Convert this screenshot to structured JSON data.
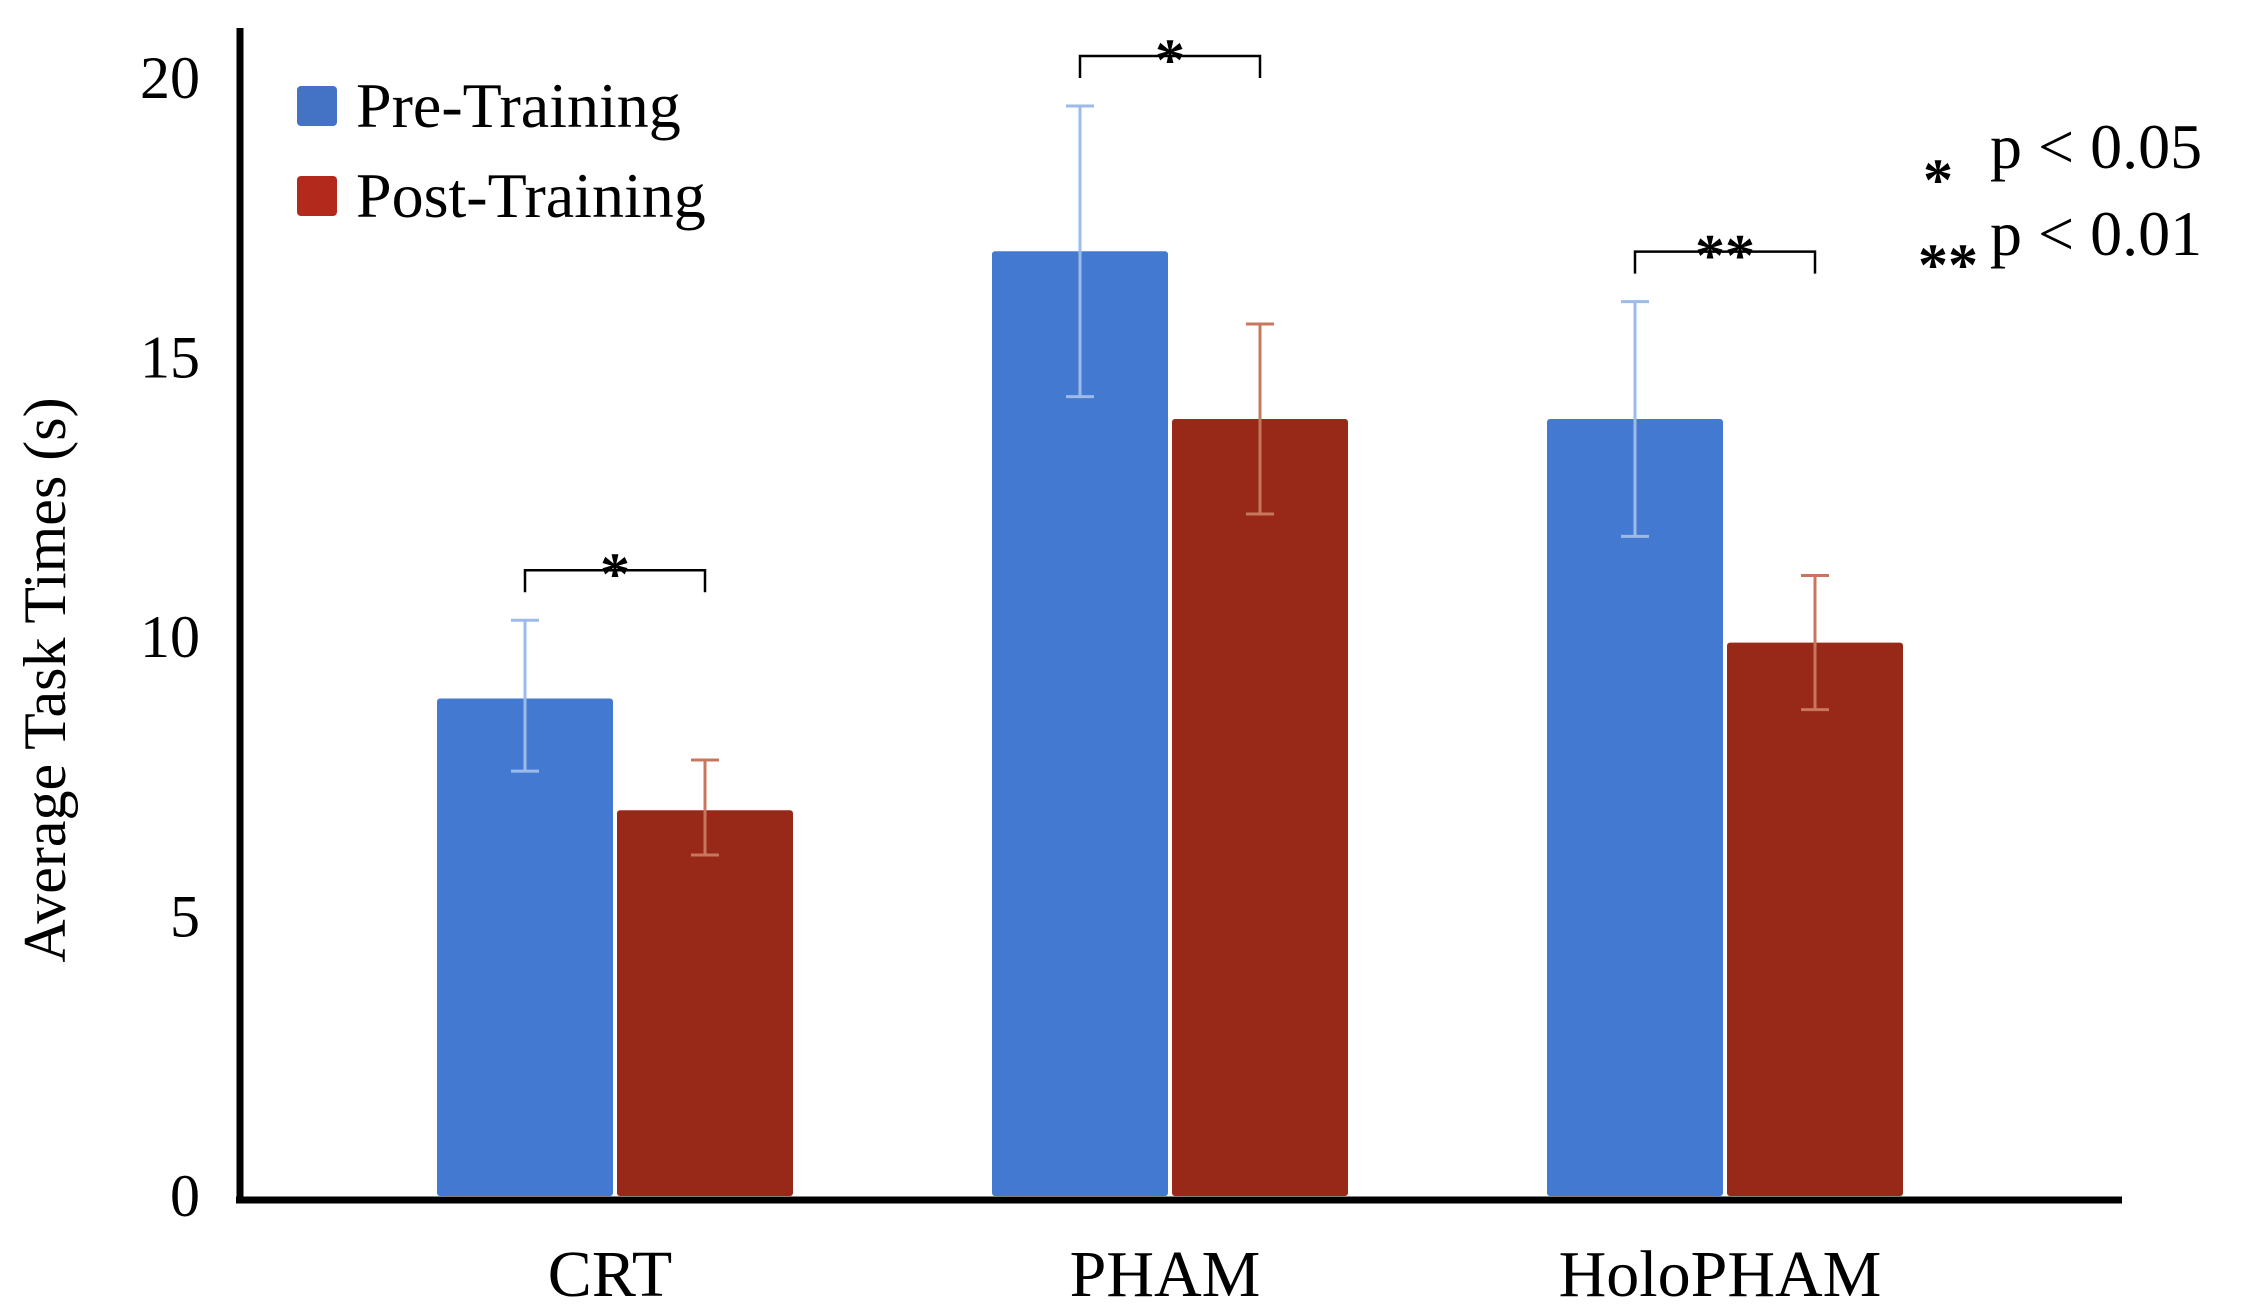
{
  "colors": {
    "pre_bar": "#4479d1",
    "pre_err": "#9dbbe8",
    "post_bar": "#982918",
    "post_err": "#c8775f",
    "axis": "#000000"
  },
  "chart_data": {
    "type": "bar",
    "categories": [
      "CRT",
      "PHAM",
      "HoloPHAM"
    ],
    "series": [
      {
        "name": "Pre-Training",
        "values": [
          8.9,
          16.9,
          13.9
        ],
        "error_low": [
          7.6,
          14.3,
          11.8
        ],
        "error_high": [
          10.3,
          19.5,
          16.0
        ],
        "legend_color": "#4472c4"
      },
      {
        "name": "Post-Training",
        "values": [
          6.9,
          13.9,
          9.9
        ],
        "error_low": [
          6.1,
          12.2,
          8.7
        ],
        "error_high": [
          7.8,
          15.6,
          11.1
        ],
        "legend_color": "#b32a1c"
      }
    ],
    "ylabel": "Average Task Times (s)",
    "xlabel": "",
    "ylim": [
      0,
      20
    ],
    "yticks": [
      "0",
      "5",
      "10",
      "15",
      "20"
    ],
    "grid": false,
    "legend_position": "top-left",
    "significance": [
      {
        "category": "CRT",
        "marker": "*"
      },
      {
        "category": "PHAM",
        "marker": "*"
      },
      {
        "category": "HoloPHAM",
        "marker": "**"
      }
    ],
    "significance_key": [
      {
        "marker": "*",
        "text": "p < 0.05"
      },
      {
        "marker": "**",
        "text": "p < 0.01"
      }
    ]
  }
}
